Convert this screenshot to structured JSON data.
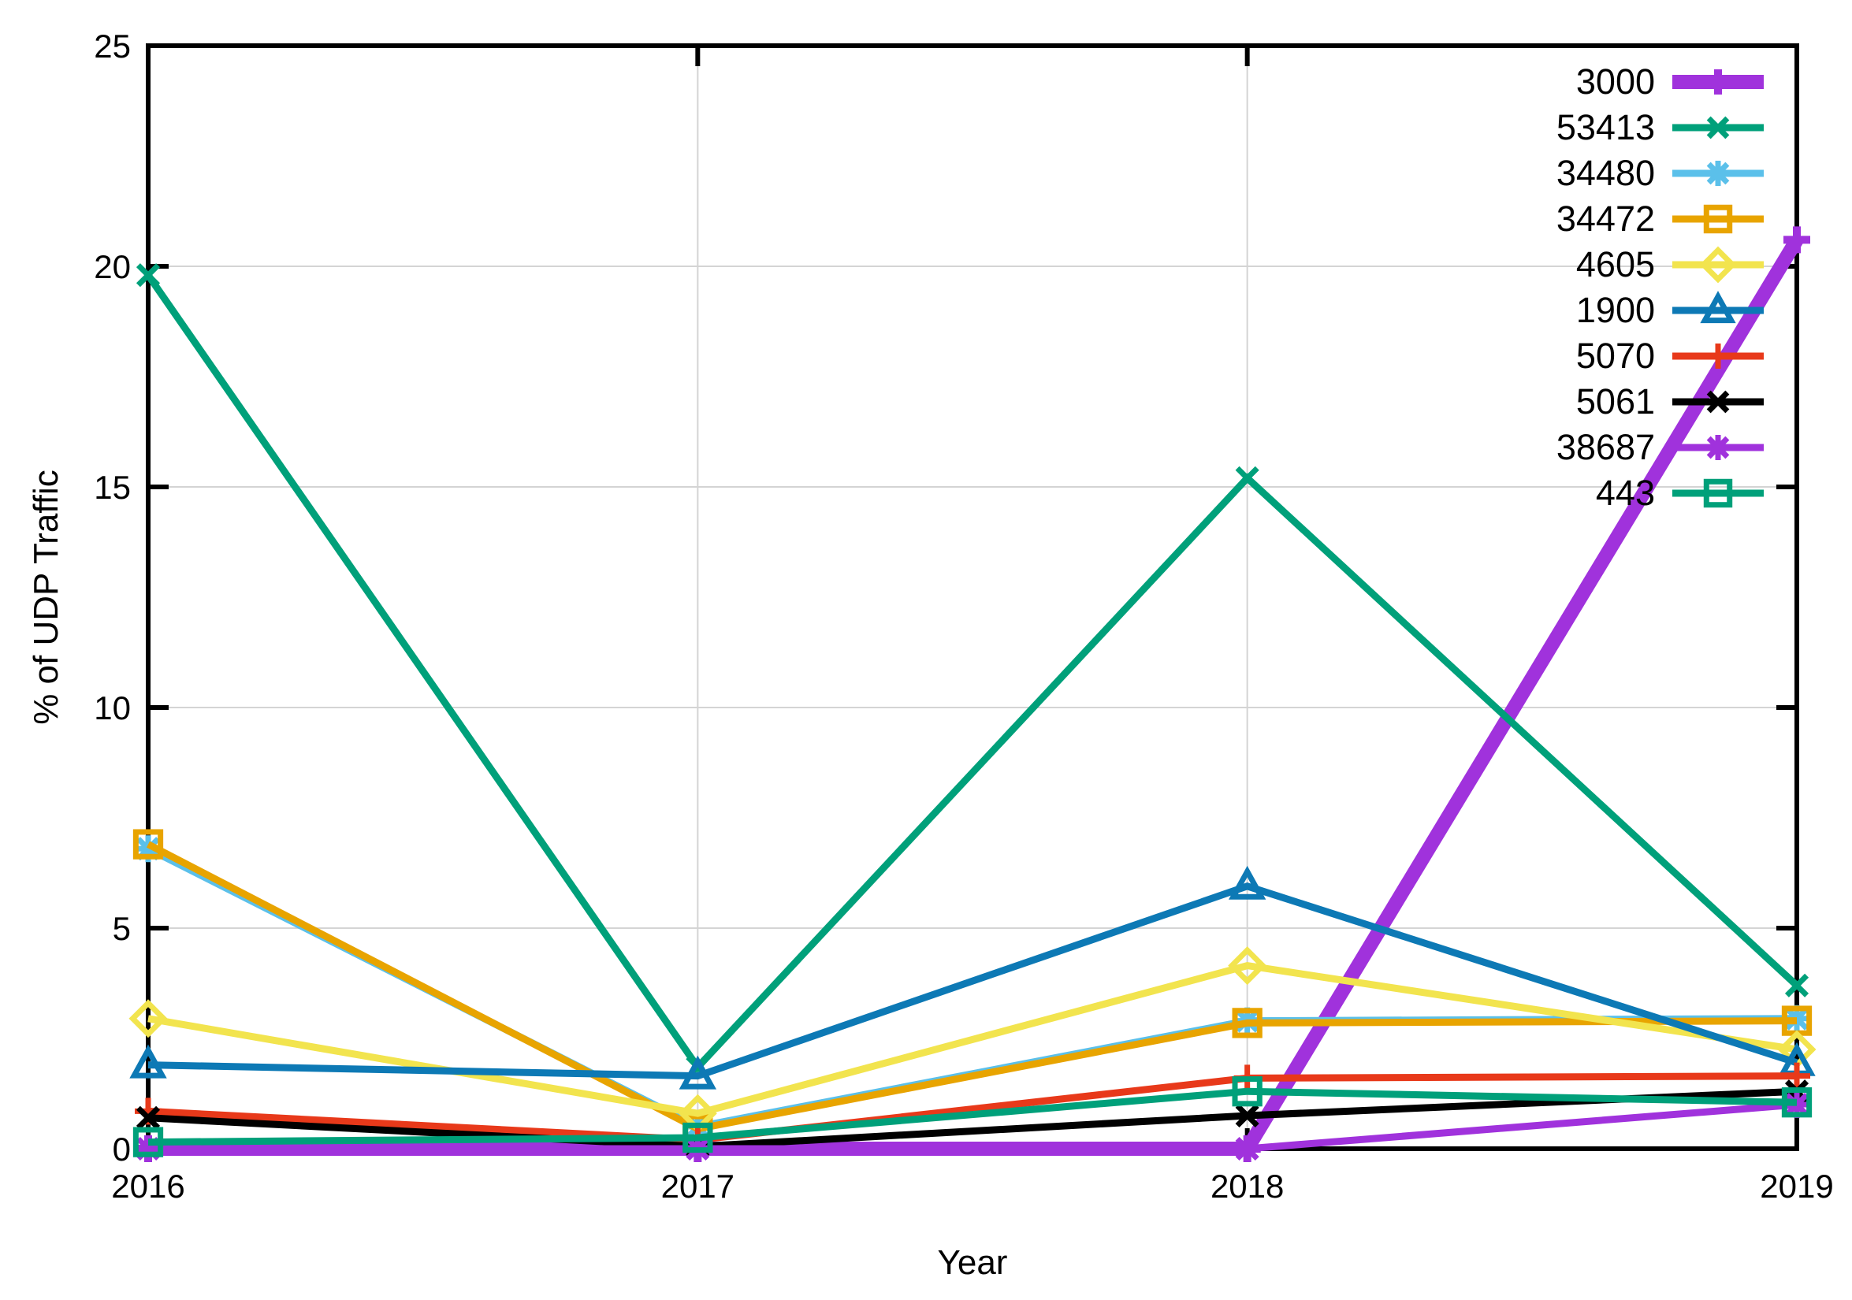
{
  "chart_data": {
    "type": "line",
    "title": "",
    "xlabel": "Year",
    "ylabel": "% of UDP Traffic",
    "x": [
      2016,
      2017,
      2018,
      2019
    ],
    "xlim": [
      2016,
      2019
    ],
    "ylim": [
      0,
      25
    ],
    "xticks": [
      2016,
      2017,
      2018,
      2019
    ],
    "yticks": [
      0,
      5,
      10,
      15,
      20,
      25
    ],
    "grid": true,
    "legend_position": "top-right-inside",
    "series": [
      {
        "name": "3000",
        "color": "#a032dc",
        "marker": "plus",
        "line_width": 18,
        "values": [
          0,
          0,
          0,
          20.6
        ]
      },
      {
        "name": "53413",
        "color": "#00a07a",
        "marker": "cross",
        "line_width": 9,
        "values": [
          19.8,
          1.85,
          15.2,
          3.7
        ]
      },
      {
        "name": "34480",
        "color": "#5bc0ea",
        "marker": "asterisk",
        "line_width": 9,
        "values": [
          6.8,
          0.5,
          2.9,
          2.95
        ]
      },
      {
        "name": "34472",
        "color": "#e8a400",
        "marker": "square",
        "line_width": 9,
        "values": [
          6.9,
          0.45,
          2.85,
          2.9
        ]
      },
      {
        "name": "4605",
        "color": "#f2e44e",
        "marker": "diamond",
        "line_width": 9,
        "values": [
          2.95,
          0.8,
          4.15,
          2.25
        ]
      },
      {
        "name": "1900",
        "color": "#0d79b5",
        "marker": "triangle",
        "line_width": 9,
        "values": [
          1.9,
          1.65,
          5.95,
          1.95
        ]
      },
      {
        "name": "5070",
        "color": "#e8391a",
        "marker": "plus",
        "line_width": 9,
        "values": [
          0.85,
          0.2,
          1.6,
          1.65
        ]
      },
      {
        "name": "5061",
        "color": "#000000",
        "marker": "cross",
        "line_width": 9,
        "values": [
          0.7,
          0.05,
          0.75,
          1.3
        ]
      },
      {
        "name": "38687",
        "color": "#a032dc",
        "marker": "asterisk",
        "line_width": 9,
        "values": [
          0,
          0,
          0,
          1.0
        ]
      },
      {
        "name": "443",
        "color": "#00a07a",
        "marker": "square",
        "line_width": 9,
        "values": [
          0.15,
          0.25,
          1.3,
          1.05
        ]
      }
    ],
    "style": {
      "grid_color": "#d4d4d4",
      "border_color": "#000000",
      "tick_label_color": "#000000"
    }
  }
}
